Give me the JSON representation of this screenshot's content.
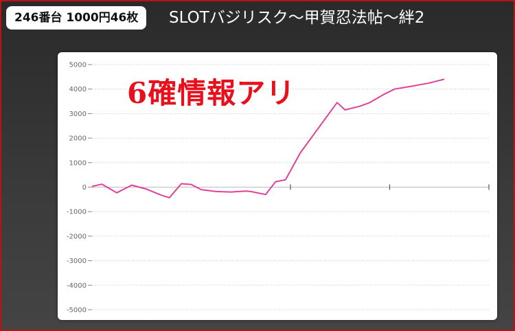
{
  "header": {
    "machine_info": "246番台 1000円46枚",
    "machine_title": "SLOTバジリスク〜甲賀忍法帖〜絆2"
  },
  "overlay": {
    "label": "6確情報アリ"
  },
  "chart_data": {
    "type": "line",
    "title": "",
    "xlabel": "",
    "ylabel": "",
    "ylim": [
      -5000,
      5000
    ],
    "y_ticks": [
      5000,
      4000,
      3000,
      2000,
      1000,
      0,
      -1000,
      -2000,
      -3000,
      -4000,
      -5000
    ],
    "y_tick_labels": [
      "5000",
      "4000",
      "3000",
      "2000",
      "1000",
      "0",
      "-1000",
      "-2000",
      "-3000",
      "-4000",
      "-5000"
    ],
    "x_max": 40,
    "x_ticks": [
      20,
      30,
      40
    ],
    "grid": true,
    "series": [
      {
        "color": "#e0409a",
        "x": [
          0,
          1,
          2.5,
          4,
          5.5,
          7,
          7.8,
          9,
          10,
          11,
          12.5,
          14,
          15.5,
          16,
          17.5,
          18.5,
          19.5,
          21,
          24.7,
          25.5,
          27,
          28,
          29.5,
          30.5,
          32,
          34,
          35.5
        ],
        "y": [
          30,
          120,
          -230,
          80,
          -80,
          -330,
          -430,
          140,
          110,
          -100,
          -180,
          -200,
          -160,
          -180,
          -300,
          220,
          300,
          1400,
          3450,
          3150,
          3300,
          3450,
          3800,
          4000,
          4100,
          4250,
          4400
        ]
      }
    ]
  }
}
